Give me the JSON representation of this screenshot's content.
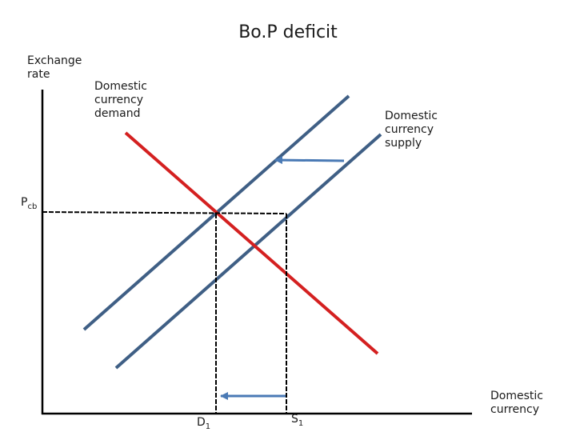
{
  "title": "Bo.P deficit",
  "y_axis_label": [
    "Exchange",
    "rate"
  ],
  "x_axis_label": [
    "Domestic",
    "currency"
  ],
  "demand_label": [
    "Domestic",
    "currency",
    "demand"
  ],
  "supply_label": [
    "Domestic",
    "currency",
    "supply"
  ],
  "price_label": {
    "main": "P",
    "sub": "cb"
  },
  "d_label": {
    "main": "D",
    "sub": "1"
  },
  "s_label": {
    "main": "S",
    "sub": "1"
  },
  "colors": {
    "demand": "#d42020",
    "supply": "#3f5f85",
    "arrow": "#4a7ab5",
    "axis": "#000000"
  }
}
